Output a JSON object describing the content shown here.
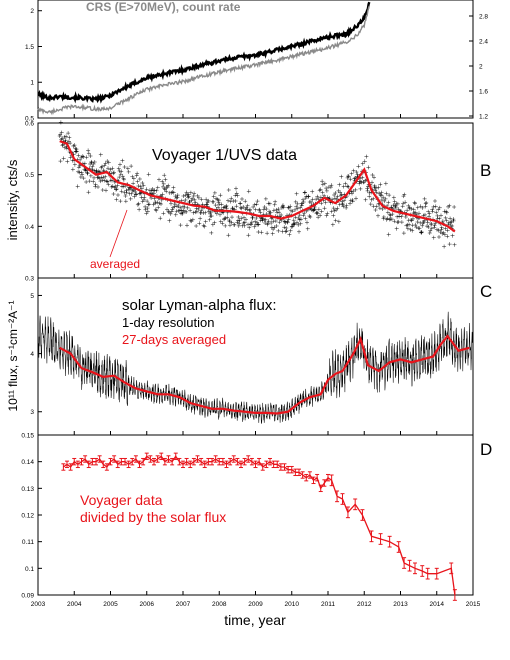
{
  "figure": {
    "xlabel": "time, year",
    "x_ticks": [
      "2003",
      "2004",
      "2005",
      "2006",
      "2007",
      "2008",
      "2009",
      "2010",
      "2011",
      "2012",
      "2013",
      "2014",
      "2015"
    ]
  },
  "colors": {
    "black": "#000000",
    "gray": "#8a8a8a",
    "red": "#e8141b"
  },
  "chart_data": [
    {
      "id": "A",
      "type": "line",
      "title": "CRS (E>70MeV), count rate",
      "xlim": [
        2003,
        2015
      ],
      "ylim": [
        0.5,
        2.15
      ],
      "y_ticks_left": [
        "0.5",
        "1",
        "1.5",
        "2"
      ],
      "y_ticks_right": [
        "1.2",
        "1.6",
        "2",
        "2.4",
        "2.8"
      ],
      "series": [
        {
          "color": "black",
          "x": [
            2003.0,
            2003.3,
            2003.6,
            2003.9,
            2004.2,
            2004.5,
            2004.8,
            2005.0,
            2005.3,
            2005.6,
            2006.0,
            2006.5,
            2007.0,
            2007.5,
            2008.0,
            2008.5,
            2009.0,
            2009.5,
            2010.0,
            2010.5,
            2011.0,
            2011.5,
            2011.8,
            2012.0,
            2012.1,
            2012.15
          ],
          "y": [
            0.83,
            0.78,
            0.8,
            0.79,
            0.78,
            0.76,
            0.78,
            0.82,
            0.9,
            0.97,
            1.06,
            1.12,
            1.17,
            1.24,
            1.3,
            1.35,
            1.38,
            1.44,
            1.5,
            1.57,
            1.63,
            1.68,
            1.78,
            1.9,
            2.05,
            2.12
          ]
        },
        {
          "color": "gray",
          "x": [
            2003.0,
            2003.3,
            2003.6,
            2003.9,
            2004.2,
            2004.5,
            2004.8,
            2005.0,
            2005.3,
            2005.6,
            2006.0,
            2006.5,
            2007.0,
            2007.5,
            2008.0,
            2008.5,
            2009.0,
            2009.5,
            2010.0,
            2010.5,
            2011.0,
            2011.5,
            2011.8,
            2012.0,
            2012.1,
            2012.15
          ],
          "y": [
            0.62,
            0.58,
            0.62,
            0.66,
            0.65,
            0.63,
            0.62,
            0.64,
            0.72,
            0.8,
            0.9,
            0.96,
            1.01,
            1.08,
            1.14,
            1.2,
            1.24,
            1.3,
            1.36,
            1.42,
            1.48,
            1.56,
            1.66,
            1.8,
            1.98,
            2.08
          ]
        }
      ]
    },
    {
      "id": "B",
      "type": "scatter",
      "title": "Voyager 1/UVS  data",
      "ylabel": "intensity, cts/s",
      "annotation": "averaged",
      "xlim": [
        2003,
        2015
      ],
      "ylim": [
        0.3,
        0.6
      ],
      "y_ticks": [
        "0.3",
        "0.4",
        "0.5",
        "0.6"
      ],
      "noise": 0.03,
      "averaged": {
        "color": "red",
        "x": [
          2003.6,
          2003.8,
          2004.0,
          2004.3,
          2004.6,
          2004.9,
          2005.2,
          2005.5,
          2005.8,
          2006.1,
          2006.4,
          2006.7,
          2007.0,
          2007.3,
          2007.6,
          2007.9,
          2008.2,
          2008.5,
          2008.8,
          2009.1,
          2009.4,
          2009.7,
          2010.0,
          2010.3,
          2010.6,
          2010.9,
          2011.2,
          2011.5,
          2011.7,
          2011.9,
          2012.0,
          2012.2,
          2012.5,
          2012.8,
          2013.1,
          2013.4,
          2013.7,
          2014.0,
          2014.3,
          2014.5
        ],
        "y": [
          0.565,
          0.56,
          0.53,
          0.515,
          0.5,
          0.505,
          0.485,
          0.48,
          0.47,
          0.46,
          0.455,
          0.45,
          0.445,
          0.44,
          0.438,
          0.43,
          0.43,
          0.428,
          0.425,
          0.42,
          0.42,
          0.415,
          0.42,
          0.43,
          0.44,
          0.455,
          0.445,
          0.46,
          0.48,
          0.5,
          0.51,
          0.47,
          0.44,
          0.43,
          0.425,
          0.42,
          0.415,
          0.41,
          0.4,
          0.39
        ]
      }
    },
    {
      "id": "C",
      "type": "line",
      "title": "solar Lyman-alpha flux:",
      "ylabel": "10¹¹ flux, s⁻¹cm⁻²A⁻¹",
      "legend": [
        "1-day resolution",
        "27-days averaged"
      ],
      "xlim": [
        2003,
        2015
      ],
      "ylim": [
        2.6,
        5.3
      ],
      "y_ticks": [
        "3",
        "4",
        "5"
      ],
      "noise": 0.25,
      "averaged": {
        "color": "red",
        "x": [
          2003.6,
          2003.9,
          2004.2,
          2004.5,
          2004.8,
          2005.1,
          2005.4,
          2005.7,
          2006.0,
          2006.3,
          2006.6,
          2006.9,
          2007.2,
          2007.5,
          2007.8,
          2008.1,
          2008.4,
          2008.7,
          2009.0,
          2009.3,
          2009.6,
          2009.9,
          2010.2,
          2010.5,
          2010.8,
          2011.0,
          2011.2,
          2011.4,
          2011.7,
          2011.9,
          2012.1,
          2012.4,
          2012.7,
          2013.0,
          2013.3,
          2013.6,
          2013.9,
          2014.1,
          2014.3,
          2014.6,
          2014.9
        ],
        "y": [
          4.1,
          4.0,
          3.75,
          3.68,
          3.6,
          3.62,
          3.5,
          3.4,
          3.35,
          3.3,
          3.3,
          3.25,
          3.15,
          3.1,
          3.05,
          3.05,
          3.02,
          3.0,
          2.98,
          2.98,
          2.97,
          3.0,
          3.15,
          3.25,
          3.3,
          3.55,
          3.65,
          3.7,
          4.0,
          4.25,
          3.8,
          3.7,
          3.85,
          3.9,
          3.85,
          3.9,
          3.95,
          4.15,
          4.3,
          4.05,
          4.1
        ]
      }
    },
    {
      "id": "D",
      "type": "line",
      "annotation_lines": [
        "Voyager data",
        "divided by the solar flux"
      ],
      "xlim": [
        2003,
        2015
      ],
      "ylim": [
        0.09,
        0.15
      ],
      "y_ticks": [
        "0.09",
        "0.1",
        "0.11",
        "0.12",
        "0.13",
        "0.14",
        "0.15"
      ],
      "series": [
        {
          "color": "red",
          "x": [
            2003.7,
            2003.8,
            2003.9,
            2004.0,
            2004.1,
            2004.2,
            2004.3,
            2004.4,
            2004.5,
            2004.6,
            2004.7,
            2004.8,
            2004.9,
            2005.0,
            2005.1,
            2005.2,
            2005.3,
            2005.4,
            2005.5,
            2005.6,
            2005.7,
            2005.8,
            2005.9,
            2006.0,
            2006.1,
            2006.2,
            2006.3,
            2006.4,
            2006.5,
            2006.6,
            2006.7,
            2006.8,
            2006.9,
            2007.0,
            2007.1,
            2007.2,
            2007.3,
            2007.4,
            2007.5,
            2007.6,
            2007.7,
            2007.8,
            2007.9,
            2008.0,
            2008.1,
            2008.2,
            2008.3,
            2008.4,
            2008.5,
            2008.6,
            2008.7,
            2008.8,
            2008.9,
            2009.0,
            2009.1,
            2009.2,
            2009.3,
            2009.4,
            2009.5,
            2009.6,
            2009.7,
            2009.8,
            2009.9,
            2010.0,
            2010.1,
            2010.2,
            2010.3,
            2010.4,
            2010.5,
            2010.6,
            2010.7,
            2010.8,
            2010.9,
            2011.0,
            2011.1,
            2011.25,
            2011.4,
            2011.55,
            2011.75,
            2011.95,
            2012.2,
            2012.45,
            2012.7,
            2012.95,
            2013.1,
            2013.25,
            2013.4,
            2013.6,
            2013.75,
            2014.0,
            2014.4,
            2014.5
          ],
          "y": [
            0.138,
            0.139,
            0.138,
            0.14,
            0.139,
            0.14,
            0.141,
            0.139,
            0.14,
            0.14,
            0.141,
            0.139,
            0.138,
            0.14,
            0.141,
            0.139,
            0.14,
            0.14,
            0.139,
            0.14,
            0.141,
            0.139,
            0.14,
            0.142,
            0.141,
            0.14,
            0.141,
            0.142,
            0.14,
            0.141,
            0.14,
            0.142,
            0.14,
            0.139,
            0.14,
            0.139,
            0.14,
            0.141,
            0.14,
            0.139,
            0.14,
            0.14,
            0.141,
            0.14,
            0.14,
            0.139,
            0.14,
            0.141,
            0.14,
            0.139,
            0.14,
            0.141,
            0.14,
            0.139,
            0.14,
            0.138,
            0.139,
            0.14,
            0.139,
            0.139,
            0.138,
            0.138,
            0.137,
            0.137,
            0.136,
            0.136,
            0.135,
            0.134,
            0.135,
            0.133,
            0.134,
            0.13,
            0.132,
            0.134,
            0.133,
            0.127,
            0.126,
            0.121,
            0.124,
            0.12,
            0.112,
            0.111,
            0.11,
            0.108,
            0.102,
            0.101,
            0.1,
            0.099,
            0.098,
            0.098,
            0.1,
            0.09
          ]
        }
      ]
    }
  ],
  "panel_letters": [
    "B",
    "C",
    "D"
  ]
}
